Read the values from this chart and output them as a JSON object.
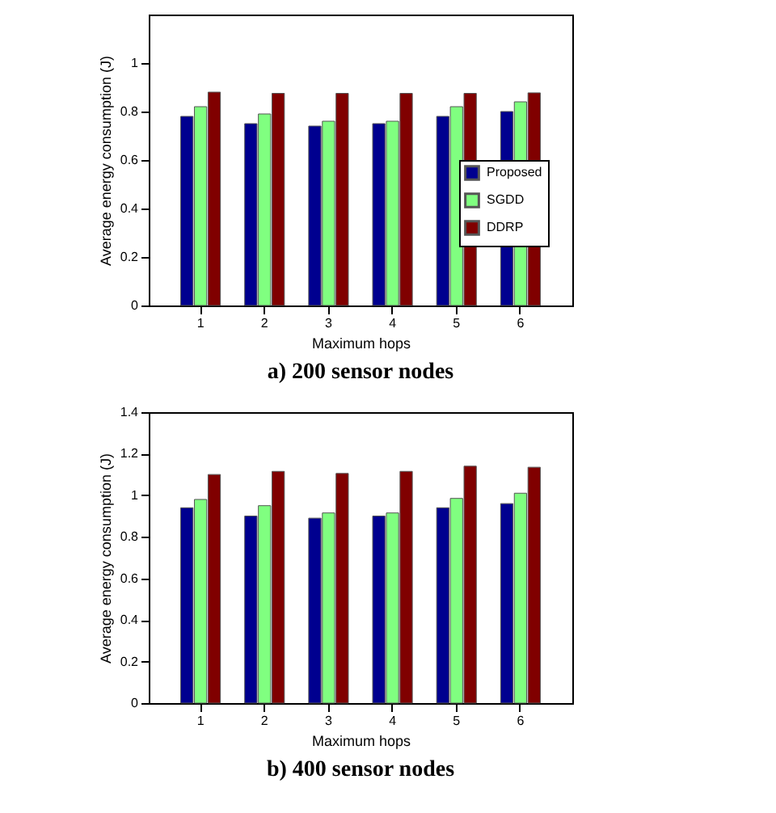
{
  "chart_data": [
    {
      "type": "bar",
      "title": "a) 200 sensor nodes",
      "xlabel": "Maximum hops",
      "ylabel": "Average energy consumption (J)",
      "categories": [
        "1",
        "2",
        "3",
        "4",
        "5",
        "6"
      ],
      "series": [
        {
          "name": "Proposed",
          "color": "#00008f",
          "values": [
            0.78,
            0.75,
            0.74,
            0.75,
            0.78,
            0.8
          ]
        },
        {
          "name": "SGDD",
          "color": "#80ff80",
          "values": [
            0.82,
            0.79,
            0.76,
            0.76,
            0.82,
            0.84
          ]
        },
        {
          "name": "DDRP",
          "color": "#800000",
          "values": [
            0.88,
            0.875,
            0.875,
            0.875,
            0.875,
            0.877
          ]
        }
      ],
      "ylim": [
        0,
        1.2
      ],
      "yticks": [
        0,
        0.2,
        0.4,
        0.6,
        0.8,
        1
      ],
      "legend": "right",
      "grid": false
    },
    {
      "type": "bar",
      "title": "b) 400 sensor nodes",
      "xlabel": "Maximum hops",
      "ylabel": "Average energy consumption (J)",
      "categories": [
        "1",
        "2",
        "3",
        "4",
        "5",
        "6"
      ],
      "series": [
        {
          "name": "Proposed",
          "color": "#00008f",
          "values": [
            0.94,
            0.9,
            0.89,
            0.9,
            0.94,
            0.96
          ]
        },
        {
          "name": "SGDD",
          "color": "#80ff80",
          "values": [
            0.98,
            0.95,
            0.915,
            0.915,
            0.985,
            1.01
          ]
        },
        {
          "name": "DDRP",
          "color": "#800000",
          "values": [
            1.1,
            1.115,
            1.105,
            1.115,
            1.14,
            1.135
          ]
        }
      ],
      "ylim": [
        0,
        1.4
      ],
      "yticks": [
        0,
        0.2,
        0.4,
        0.6,
        0.8,
        1,
        1.2,
        1.4
      ],
      "legend": "right",
      "grid": false
    }
  ]
}
